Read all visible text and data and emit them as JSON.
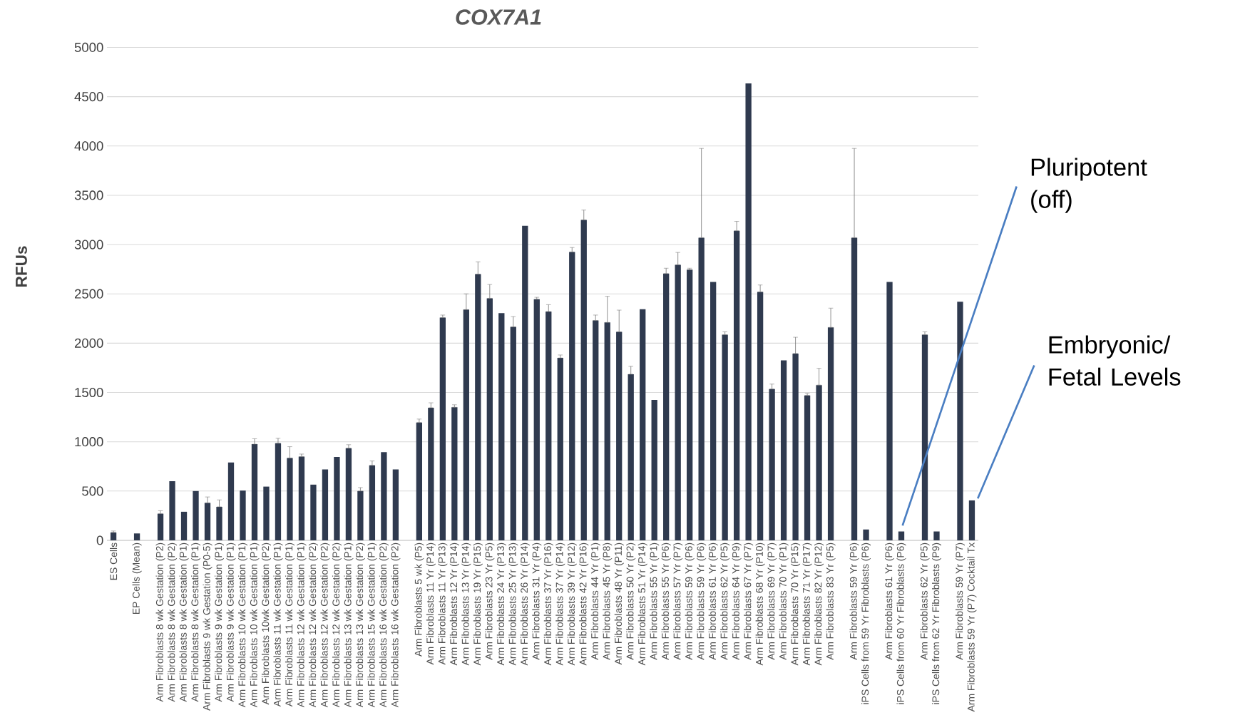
{
  "chart_data": {
    "type": "bar",
    "title": "COX7A1",
    "ylabel": "RFUs",
    "categories": [
      "ES Cells",
      null,
      "EP Cells (Mean)",
      null,
      "Arm Fibroblasts 8 wk Gestation (P2)",
      "Arm Fibroblasts 8 wk Gestation (P2)",
      "Arm Fibroblasts 8 wk Gestation (P1)",
      "Arm Fibroblasts 8 wk Gestation (P1)",
      "Arm Fibroblasts 9 wk Gestation (P0-5)",
      "Arm Fibroblasts 9 wk Gestation (P1)",
      "Arm Fibroblasts 9 wk Gestation (P1)",
      "Arm Fibroblasts 10 wk Gestation (P1)",
      "Arm Fibroblasts 10 wk Gestation (P1)",
      "Arm Fibroblasts 10wk Gestation (P2)",
      "Arm Fibroblasts 11 wk Gestation (P1)",
      "Arm Fibroblasts 11 wk Gestation (P1)",
      "Arm Fibroblasts 12 wk Gestation (P1)",
      "Arm Fibroblasts 12 wk Gestation (P2)",
      "Arm Fibroblasts 12 wk Gestation (P2)",
      "Arm Fibroblasts 12 wk Gestation (P2)",
      "Arm Fibroblasts 13 wk Gestation (P1)",
      "Arm Fibroblasts 13 wk Gestation (P2)",
      "Arm Fibroblasts 15 wk Gestation (P1)",
      "Arm Fibroblasts 16 wk Gestation (P2)",
      "Arm Fibroblasts 16 wk Gestation (P2)",
      null,
      "Arm Fibroblasts 5 wk (P5)",
      "Arm Fibroblasts 11 Yr (P14)",
      "Arm Fibroblasts 11 Yr (P13)",
      "Arm Fibroblasts 12 Yr (P14)",
      "Arm Fibroblasts 13 Yr (P14)",
      "Arm Fibroblasts 19 Yr (P15)",
      "Arm Fibroblasts 23 Yr (P5)",
      "Arm Fibroblasts 24 Yr (P13)",
      "Arm Fibroblasts 25 Yr (P13)",
      "Arm Fibroblasts 26 Yr (P14)",
      "Arm Fibroblasts 31 Yr (P4)",
      "Arm Fibroblasts 37 Yr (P16)",
      "Arm Fibroblasts 37 Yr (P14)",
      "Arm Fibroblasts 39 Yr (P12)",
      "Arm Fibroblasts 42 Yr (P16)",
      "Arm Fibroblasts 44 Yr (P1)",
      "Arm Fibroblasts 45 Yr (P8)",
      "Arm Fibroblasts 48 Yr (P11)",
      "Arm Fibroblasts 50 Yr (P2)",
      "Arm Fibroblasts 51 Yr (P14)",
      "Arm Fibroblasts 55 Yr (P1)",
      "Arm Fibroblasts 55 Yr (P6)",
      "Arm Fibroblasts 57 Yr (P7)",
      "Arm Fibroblasts 59 Yr (P6)",
      "Arm Fibroblasts 59 Yr (P6)",
      "Arm Fibroblasts 61 Yr (P6)",
      "Arm Fibroblasts 62 Yr (P5)",
      "Arm Fibroblasts 64 Yr (P9)",
      "Arm Fibroblasts 67 Yr (P7)",
      "Arm Fibroblasts 68 Yr (P10)",
      "Arm Fibroblasts 69 Yr (P7)",
      "Arm Fibroblasts 70 Yr (P1)",
      "Arm Fibroblasts 70 Yr (P15)",
      "Arm Fibroblasts 71 Yr (P17)",
      "Arm Fibroblasts 82 Yr (P12)",
      "Arm Fibroblasts 83 Yr (P5)",
      null,
      "Arm Fibroblasts 59 Yr (P6)",
      "iPS Cells from 59 Yr Fibroblasts (P6)",
      null,
      "Arm Fibroblasts 61 Yr (P6)",
      "iPS Cells from 60 Yr Fibroblasts (P6)",
      null,
      "Arm Fibroblasts 62 Yr (P5)",
      "iPS Cells from 62 Yr Fibroblasts (P9)",
      null,
      "Arm Fibroblasts 59 Yr (P7)",
      "Arm Fibroblasts 59 Yr (P7) Cocktail Tx"
    ],
    "values": [
      80,
      null,
      70,
      null,
      270,
      600,
      290,
      500,
      380,
      340,
      790,
      505,
      975,
      545,
      985,
      835,
      850,
      565,
      720,
      845,
      935,
      500,
      760,
      895,
      720,
      null,
      1195,
      1345,
      2260,
      1350,
      2340,
      2700,
      2455,
      2305,
      2165,
      3190,
      2445,
      2320,
      1850,
      2925,
      3250,
      2230,
      2210,
      2115,
      1685,
      2345,
      1425,
      2705,
      2795,
      2745,
      3070,
      2620,
      2085,
      3140,
      4635,
      2520,
      1535,
      1825,
      1895,
      1470,
      1575,
      2160,
      null,
      3070,
      110,
      null,
      2620,
      90,
      null,
      2085,
      90,
      null,
      2420,
      405
    ],
    "errors": [
      [
        80,
        95
      ],
      null,
      null,
      null,
      [
        270,
        300
      ],
      null,
      null,
      null,
      [
        380,
        440
      ],
      [
        340,
        410
      ],
      null,
      null,
      [
        975,
        1030
      ],
      null,
      [
        985,
        1035
      ],
      [
        835,
        950
      ],
      [
        850,
        875
      ],
      null,
      null,
      null,
      [
        935,
        970
      ],
      [
        500,
        535
      ],
      [
        760,
        805
      ],
      null,
      null,
      null,
      [
        1195,
        1230
      ],
      [
        1345,
        1395
      ],
      [
        2260,
        2285
      ],
      [
        1350,
        1375
      ],
      [
        2340,
        2500
      ],
      [
        2700,
        2825
      ],
      [
        2455,
        2595
      ],
      null,
      [
        2165,
        2270
      ],
      null,
      [
        2445,
        2465
      ],
      [
        2320,
        2390
      ],
      [
        1850,
        1880
      ],
      [
        2925,
        2970
      ],
      [
        3250,
        3350
      ],
      [
        2230,
        2285
      ],
      [
        2210,
        2475
      ],
      [
        2115,
        2335
      ],
      [
        1685,
        1765
      ],
      null,
      null,
      [
        2705,
        2760
      ],
      [
        2795,
        2920
      ],
      [
        2745,
        2760
      ],
      [
        3070,
        3975
      ],
      null,
      [
        2085,
        2115
      ],
      [
        3140,
        3235
      ],
      null,
      [
        2520,
        2590
      ],
      [
        1535,
        1585
      ],
      null,
      [
        1895,
        2060
      ],
      [
        1470,
        1490
      ],
      [
        1575,
        1745
      ],
      [
        2160,
        2355
      ],
      null,
      [
        3070,
        3975
      ],
      null,
      null,
      null,
      null,
      null,
      [
        2085,
        2115
      ],
      null,
      null,
      null,
      null
    ],
    "color": "#2f3a4f",
    "ylim": [
      0,
      5000
    ],
    "yticks": [
      0,
      500,
      1000,
      1500,
      2000,
      2500,
      3000,
      3500,
      4000,
      4500,
      5000
    ],
    "grid": "y",
    "annotations": [
      {
        "text": "Pluripotent (off)",
        "x": "iPS Cells from 60 Yr Fibroblasts (P6)",
        "y": 90
      },
      {
        "text": "Embryonic/ Fetal Levels",
        "x": "Arm Fibroblasts 59 Yr (P7) Cocktail Tx",
        "y": 405
      }
    ]
  }
}
